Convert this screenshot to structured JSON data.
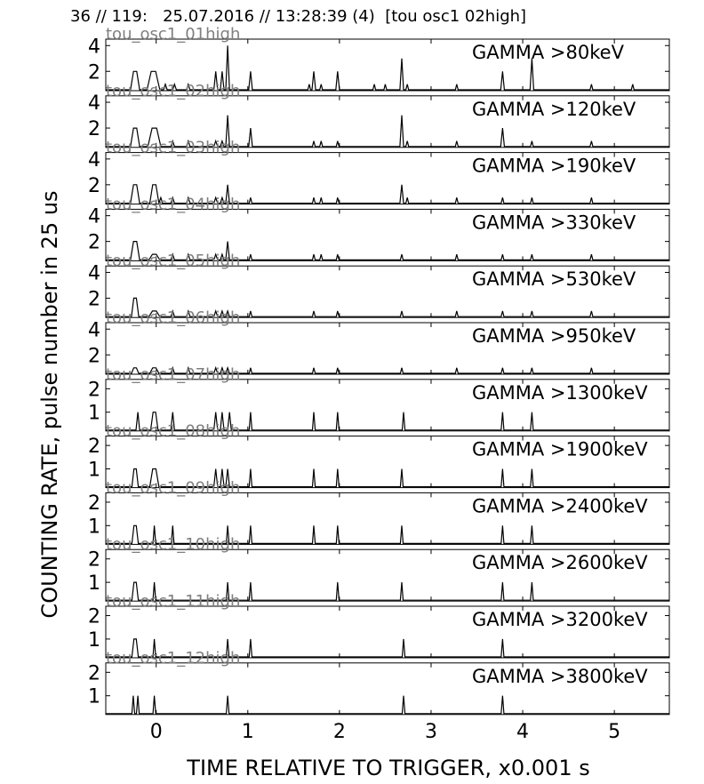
{
  "header": {
    "title": "36 // 119:   25.07.2016 // 13:28:39 (4)  [tou osc1 02high]"
  },
  "chart_data": {
    "type": "line",
    "xlabel": "TIME RELATIVE TO TRIGGER,   x0.001 s",
    "ylabel": "COUNTING RATE,    pulse number in 25 us",
    "xlim": [
      -0.55,
      5.6
    ],
    "xticks": [
      "0",
      "1",
      "2",
      "3",
      "4",
      "5"
    ],
    "xtick_values": [
      0,
      1,
      2,
      3,
      4,
      5
    ],
    "grid": false,
    "panels": [
      {
        "band": "GAMMA >80keV",
        "channel": "tou_osc1_01high",
        "ylim": [
          0.5,
          4.5
        ],
        "yticks": [
          "4",
          "2"
        ],
        "ytick_values": [
          4,
          2
        ],
        "peaks": [
          [
            -0.23,
            2,
            0.05
          ],
          [
            -0.03,
            2,
            0.07
          ],
          [
            0.1,
            1,
            0.02
          ],
          [
            0.2,
            1,
            0.02
          ],
          [
            0.35,
            1,
            0.02
          ],
          [
            0.65,
            2,
            0.02
          ],
          [
            0.72,
            2,
            0.02
          ],
          [
            0.78,
            4,
            0.02
          ],
          [
            1.03,
            2,
            0.02
          ],
          [
            1.67,
            1,
            0.015
          ],
          [
            1.72,
            2,
            0.02
          ],
          [
            1.8,
            1,
            0.015
          ],
          [
            1.98,
            2,
            0.02
          ],
          [
            2.38,
            1,
            0.015
          ],
          [
            2.5,
            1,
            0.015
          ],
          [
            2.68,
            3,
            0.02
          ],
          [
            2.74,
            1,
            0.015
          ],
          [
            3.28,
            1,
            0.015
          ],
          [
            3.78,
            2,
            0.02
          ],
          [
            4.1,
            3,
            0.02
          ],
          [
            4.75,
            1,
            0.015
          ],
          [
            5.2,
            1,
            0.015
          ]
        ]
      },
      {
        "band": "GAMMA >120keV",
        "channel": "tou_osc1_02high",
        "ylim": [
          0.5,
          4.5
        ],
        "yticks": [
          "4",
          "2"
        ],
        "ytick_values": [
          4,
          2
        ],
        "peaks": [
          [
            -0.23,
            2,
            0.05
          ],
          [
            -0.02,
            2,
            0.07
          ],
          [
            0.18,
            1,
            0.02
          ],
          [
            0.35,
            1,
            0.02
          ],
          [
            0.65,
            1,
            0.02
          ],
          [
            0.72,
            1,
            0.02
          ],
          [
            0.78,
            3,
            0.02
          ],
          [
            1.03,
            2,
            0.02
          ],
          [
            1.72,
            1,
            0.015
          ],
          [
            1.8,
            1,
            0.015
          ],
          [
            1.98,
            1,
            0.015
          ],
          [
            2.68,
            3,
            0.02
          ],
          [
            2.74,
            1,
            0.015
          ],
          [
            3.28,
            1,
            0.015
          ],
          [
            3.78,
            2,
            0.02
          ],
          [
            4.1,
            1,
            0.015
          ],
          [
            4.75,
            1,
            0.015
          ]
        ]
      },
      {
        "band": "GAMMA >190keV",
        "channel": "tou_osc1_03high",
        "ylim": [
          0.5,
          4.5
        ],
        "yticks": [
          "4",
          "2"
        ],
        "ytick_values": [
          4,
          2
        ],
        "peaks": [
          [
            -0.23,
            2,
            0.05
          ],
          [
            -0.02,
            2,
            0.05
          ],
          [
            0.05,
            1,
            0.02
          ],
          [
            0.18,
            1,
            0.02
          ],
          [
            0.35,
            1,
            0.02
          ],
          [
            0.65,
            1,
            0.02
          ],
          [
            0.72,
            1,
            0.02
          ],
          [
            0.78,
            2,
            0.02
          ],
          [
            1.03,
            1,
            0.015
          ],
          [
            1.72,
            1,
            0.015
          ],
          [
            1.8,
            1,
            0.015
          ],
          [
            1.98,
            1,
            0.015
          ],
          [
            2.68,
            2,
            0.02
          ],
          [
            2.74,
            1,
            0.015
          ],
          [
            3.28,
            1,
            0.015
          ],
          [
            3.78,
            1,
            0.015
          ],
          [
            4.1,
            1,
            0.015
          ],
          [
            4.75,
            1,
            0.015
          ]
        ]
      },
      {
        "band": "GAMMA >330keV",
        "channel": "tou_osc1_04high",
        "ylim": [
          0.5,
          4.5
        ],
        "yticks": [
          "4",
          "2"
        ],
        "ytick_values": [
          4,
          2
        ],
        "peaks": [
          [
            -0.23,
            2,
            0.05
          ],
          [
            -0.02,
            1,
            0.06
          ],
          [
            0.18,
            1,
            0.02
          ],
          [
            0.35,
            1,
            0.02
          ],
          [
            0.65,
            1,
            0.02
          ],
          [
            0.72,
            1,
            0.02
          ],
          [
            0.78,
            2,
            0.02
          ],
          [
            1.03,
            1,
            0.015
          ],
          [
            1.72,
            1,
            0.015
          ],
          [
            1.8,
            1,
            0.015
          ],
          [
            1.98,
            1,
            0.015
          ],
          [
            2.68,
            1,
            0.015
          ],
          [
            3.28,
            1,
            0.015
          ],
          [
            3.78,
            1,
            0.015
          ],
          [
            4.1,
            1,
            0.015
          ],
          [
            4.75,
            1,
            0.015
          ]
        ]
      },
      {
        "band": "GAMMA >530keV",
        "channel": "tou_osc1_05high",
        "ylim": [
          0.5,
          4.5
        ],
        "yticks": [
          "4",
          "2"
        ],
        "ytick_values": [
          4,
          2
        ],
        "peaks": [
          [
            -0.23,
            2,
            0.04
          ],
          [
            -0.02,
            1,
            0.06
          ],
          [
            0.18,
            1,
            0.02
          ],
          [
            0.35,
            1,
            0.02
          ],
          [
            0.65,
            1,
            0.02
          ],
          [
            0.72,
            1,
            0.02
          ],
          [
            0.78,
            1,
            0.02
          ],
          [
            1.03,
            1,
            0.015
          ],
          [
            1.72,
            1,
            0.015
          ],
          [
            1.98,
            1,
            0.015
          ],
          [
            2.68,
            1,
            0.015
          ],
          [
            3.28,
            1,
            0.015
          ],
          [
            3.78,
            1,
            0.015
          ],
          [
            4.1,
            1,
            0.015
          ],
          [
            4.75,
            1,
            0.015
          ]
        ]
      },
      {
        "band": "GAMMA >950keV",
        "channel": "tou_osc1_06high",
        "ylim": [
          0.5,
          4.5
        ],
        "yticks": [
          "4",
          "2"
        ],
        "ytick_values": [
          4,
          2
        ],
        "peaks": [
          [
            -0.23,
            1,
            0.04
          ],
          [
            -0.02,
            1,
            0.05
          ],
          [
            0.18,
            1,
            0.02
          ],
          [
            0.35,
            1,
            0.02
          ],
          [
            0.65,
            1,
            0.02
          ],
          [
            0.72,
            1,
            0.02
          ],
          [
            0.78,
            1,
            0.02
          ],
          [
            1.03,
            1,
            0.015
          ],
          [
            1.72,
            1,
            0.015
          ],
          [
            1.98,
            1,
            0.015
          ],
          [
            2.68,
            1,
            0.015
          ],
          [
            3.28,
            1,
            0.015
          ],
          [
            3.78,
            1,
            0.015
          ],
          [
            4.1,
            1,
            0.015
          ],
          [
            4.75,
            1,
            0.015
          ]
        ]
      },
      {
        "band": "GAMMA >1300keV",
        "channel": "tou_osc1_07high",
        "ylim": [
          0.2,
          2.4
        ],
        "yticks": [
          "2",
          "1"
        ],
        "ytick_values": [
          2,
          1
        ],
        "peaks": [
          [
            -0.2,
            1,
            0.02
          ],
          [
            -0.02,
            1,
            0.04
          ],
          [
            0.18,
            1,
            0.02
          ],
          [
            0.65,
            1,
            0.02
          ],
          [
            0.72,
            1,
            0.02
          ],
          [
            0.8,
            1,
            0.02
          ],
          [
            1.03,
            1,
            0.015
          ],
          [
            1.72,
            1,
            0.015
          ],
          [
            1.98,
            1,
            0.015
          ],
          [
            2.7,
            1,
            0.015
          ],
          [
            3.78,
            1,
            0.015
          ],
          [
            4.1,
            1,
            0.015
          ]
        ]
      },
      {
        "band": "GAMMA >1900keV",
        "channel": "tou_osc1_08high",
        "ylim": [
          0.2,
          2.4
        ],
        "yticks": [
          "2",
          "1"
        ],
        "ytick_values": [
          2,
          1
        ],
        "peaks": [
          [
            -0.23,
            1,
            0.035
          ],
          [
            -0.02,
            1,
            0.05
          ],
          [
            0.65,
            1,
            0.02
          ],
          [
            0.72,
            1,
            0.02
          ],
          [
            0.78,
            1,
            0.02
          ],
          [
            1.03,
            1,
            0.015
          ],
          [
            1.72,
            1,
            0.015
          ],
          [
            1.98,
            1,
            0.015
          ],
          [
            2.68,
            1,
            0.015
          ],
          [
            3.78,
            1,
            0.015
          ],
          [
            4.1,
            1,
            0.015
          ]
        ]
      },
      {
        "band": "GAMMA >2400keV",
        "channel": "tou_osc1_09high",
        "ylim": [
          0.2,
          2.4
        ],
        "yticks": [
          "2",
          "1"
        ],
        "ytick_values": [
          2,
          1
        ],
        "peaks": [
          [
            -0.23,
            1,
            0.035
          ],
          [
            -0.02,
            1,
            0.015
          ],
          [
            0.18,
            1,
            0.015
          ],
          [
            0.78,
            1,
            0.015
          ],
          [
            1.03,
            1,
            0.015
          ],
          [
            1.72,
            1,
            0.015
          ],
          [
            1.98,
            1,
            0.015
          ],
          [
            2.68,
            1,
            0.015
          ],
          [
            3.78,
            1,
            0.015
          ],
          [
            4.1,
            1,
            0.015
          ]
        ]
      },
      {
        "band": "GAMMA >2600keV",
        "channel": "tou_osc1_10high",
        "ylim": [
          0.2,
          2.4
        ],
        "yticks": [
          "2",
          "1"
        ],
        "ytick_values": [
          2,
          1
        ],
        "peaks": [
          [
            -0.23,
            1,
            0.035
          ],
          [
            -0.02,
            1,
            0.015
          ],
          [
            0.78,
            1,
            0.015
          ],
          [
            1.03,
            1,
            0.015
          ],
          [
            1.98,
            1,
            0.015
          ],
          [
            2.68,
            1,
            0.015
          ],
          [
            3.78,
            1,
            0.015
          ],
          [
            4.1,
            1,
            0.015
          ]
        ]
      },
      {
        "band": "GAMMA >3200keV",
        "channel": "tou_osc1_11high",
        "ylim": [
          0.2,
          2.4
        ],
        "yticks": [
          "2",
          "1"
        ],
        "ytick_values": [
          2,
          1
        ],
        "peaks": [
          [
            -0.23,
            1,
            0.035
          ],
          [
            -0.02,
            1,
            0.015
          ],
          [
            0.78,
            1,
            0.015
          ],
          [
            1.03,
            1,
            0.015
          ],
          [
            2.7,
            1,
            0.015
          ],
          [
            3.78,
            1,
            0.015
          ]
        ]
      },
      {
        "band": "GAMMA >3800keV",
        "channel": "tou_osc1_12high",
        "ylim": [
          0.2,
          2.4
        ],
        "yticks": [
          "2",
          "1"
        ],
        "ytick_values": [
          2,
          1
        ],
        "peaks": [
          [
            -0.25,
            1,
            0.015
          ],
          [
            -0.2,
            1,
            0.015
          ],
          [
            -0.02,
            1,
            0.015
          ],
          [
            0.78,
            1,
            0.015
          ],
          [
            2.7,
            1,
            0.015
          ],
          [
            3.78,
            1,
            0.015
          ]
        ]
      }
    ]
  }
}
